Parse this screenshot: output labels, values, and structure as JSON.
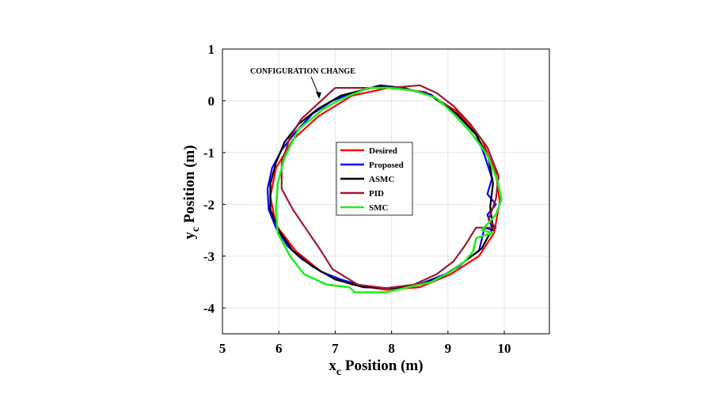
{
  "chart_data": {
    "type": "line",
    "title": "",
    "xlabel": "x",
    "xlabel_sub": "c",
    "xlabel_rest": " Position (m)",
    "ylabel": "y",
    "ylabel_sub": "c",
    "ylabel_rest": " Position (m)",
    "xlim": [
      5,
      10.8
    ],
    "ylim": [
      -4.5,
      1
    ],
    "xticks": [
      "5",
      "6",
      "7",
      "8",
      "9",
      "10"
    ],
    "yticks": [
      "1",
      "0",
      "-1",
      "-2",
      "-3",
      "-4"
    ],
    "grid": true,
    "legend_position": "center",
    "annotation": {
      "text": "CONFIGURATION CHANGE",
      "x": 6.8,
      "y": 0.05
    },
    "series": [
      {
        "name": "Desired",
        "color": "#ff0000",
        "points": [
          [
            7.95,
            0.25
          ],
          [
            8.6,
            0.17
          ],
          [
            9.15,
            -0.2
          ],
          [
            9.6,
            -0.75
          ],
          [
            9.85,
            -1.4
          ],
          [
            9.92,
            -1.95
          ],
          [
            9.82,
            -2.55
          ],
          [
            9.55,
            -3.0
          ],
          [
            9.05,
            -3.35
          ],
          [
            8.5,
            -3.6
          ],
          [
            7.9,
            -3.65
          ],
          [
            7.3,
            -3.55
          ],
          [
            6.75,
            -3.3
          ],
          [
            6.3,
            -2.9
          ],
          [
            5.95,
            -2.4
          ],
          [
            5.85,
            -1.85
          ],
          [
            5.95,
            -1.3
          ],
          [
            6.25,
            -0.75
          ],
          [
            6.7,
            -0.3
          ],
          [
            7.3,
            0.1
          ],
          [
            7.95,
            0.25
          ]
        ]
      },
      {
        "name": "Proposed",
        "color": "#0000ff",
        "points": [
          [
            7.8,
            0.3
          ],
          [
            8.2,
            0.25
          ],
          [
            8.7,
            0.12
          ],
          [
            9.15,
            -0.25
          ],
          [
            9.5,
            -0.65
          ],
          [
            9.65,
            -1.05
          ],
          [
            9.78,
            -1.5
          ],
          [
            9.7,
            -1.8
          ],
          [
            9.85,
            -2.0
          ],
          [
            9.7,
            -2.2
          ],
          [
            9.8,
            -2.5
          ],
          [
            9.65,
            -2.45
          ],
          [
            9.55,
            -2.9
          ],
          [
            9.35,
            -3.05
          ],
          [
            9.2,
            -3.2
          ],
          [
            8.95,
            -3.35
          ],
          [
            8.6,
            -3.5
          ],
          [
            8.3,
            -3.6
          ],
          [
            7.9,
            -3.62
          ],
          [
            7.5,
            -3.58
          ],
          [
            7.1,
            -3.45
          ],
          [
            6.75,
            -3.3
          ],
          [
            6.4,
            -3.05
          ],
          [
            6.15,
            -2.8
          ],
          [
            5.95,
            -2.45
          ],
          [
            5.82,
            -2.1
          ],
          [
            5.8,
            -1.7
          ],
          [
            5.88,
            -1.3
          ],
          [
            6.05,
            -0.95
          ],
          [
            6.3,
            -0.6
          ],
          [
            6.6,
            -0.25
          ],
          [
            6.95,
            0.0
          ],
          [
            7.3,
            0.15
          ],
          [
            7.8,
            0.3
          ]
        ]
      },
      {
        "name": "ASMC",
        "color": "#000000",
        "points": [
          [
            7.75,
            0.28
          ],
          [
            8.2,
            0.25
          ],
          [
            8.7,
            0.1
          ],
          [
            9.15,
            -0.25
          ],
          [
            9.5,
            -0.65
          ],
          [
            9.72,
            -1.1
          ],
          [
            9.8,
            -1.6
          ],
          [
            9.75,
            -2.05
          ],
          [
            9.8,
            -2.45
          ],
          [
            9.6,
            -2.85
          ],
          [
            9.3,
            -3.1
          ],
          [
            8.9,
            -3.4
          ],
          [
            8.5,
            -3.55
          ],
          [
            8.0,
            -3.62
          ],
          [
            7.5,
            -3.6
          ],
          [
            7.0,
            -3.45
          ],
          [
            6.6,
            -3.2
          ],
          [
            6.25,
            -2.9
          ],
          [
            6.0,
            -2.5
          ],
          [
            5.85,
            -2.1
          ],
          [
            5.85,
            -1.6
          ],
          [
            5.95,
            -1.2
          ],
          [
            6.1,
            -0.8
          ],
          [
            6.35,
            -0.45
          ],
          [
            6.7,
            -0.15
          ],
          [
            7.1,
            0.1
          ],
          [
            7.75,
            0.28
          ]
        ]
      },
      {
        "name": "PID",
        "color": "#a0182e",
        "points": [
          [
            7.0,
            0.25
          ],
          [
            7.5,
            0.25
          ],
          [
            8.0,
            0.25
          ],
          [
            8.5,
            0.3
          ],
          [
            8.8,
            0.15
          ],
          [
            9.1,
            -0.1
          ],
          [
            9.4,
            -0.45
          ],
          [
            9.7,
            -0.9
          ],
          [
            9.9,
            -1.45
          ],
          [
            9.85,
            -1.9
          ],
          [
            9.72,
            -2.3
          ],
          [
            9.85,
            -2.45
          ],
          [
            9.5,
            -2.45
          ],
          [
            9.3,
            -2.8
          ],
          [
            9.1,
            -3.1
          ],
          [
            8.8,
            -3.35
          ],
          [
            8.4,
            -3.55
          ],
          [
            7.9,
            -3.62
          ],
          [
            7.4,
            -3.55
          ],
          [
            6.95,
            -3.25
          ],
          [
            6.75,
            -2.9
          ],
          [
            6.5,
            -2.5
          ],
          [
            6.25,
            -2.1
          ],
          [
            6.05,
            -1.7
          ],
          [
            6.05,
            -1.2
          ],
          [
            6.2,
            -0.7
          ],
          [
            6.4,
            -0.35
          ],
          [
            6.7,
            -0.05
          ],
          [
            7.0,
            0.25
          ]
        ]
      },
      {
        "name": "SMC",
        "color": "#22ee22",
        "points": [
          [
            7.95,
            0.25
          ],
          [
            8.4,
            0.2
          ],
          [
            8.8,
            0.05
          ],
          [
            9.1,
            -0.25
          ],
          [
            9.4,
            -0.6
          ],
          [
            9.7,
            -1.05
          ],
          [
            9.88,
            -1.55
          ],
          [
            9.95,
            -1.9
          ],
          [
            9.85,
            -2.2
          ],
          [
            9.6,
            -2.5
          ],
          [
            9.8,
            -2.55
          ],
          [
            9.5,
            -2.65
          ],
          [
            9.45,
            -2.9
          ],
          [
            9.3,
            -3.1
          ],
          [
            9.05,
            -3.3
          ],
          [
            8.7,
            -3.5
          ],
          [
            8.3,
            -3.6
          ],
          [
            7.9,
            -3.7
          ],
          [
            7.35,
            -3.7
          ],
          [
            7.25,
            -3.6
          ],
          [
            6.85,
            -3.55
          ],
          [
            6.45,
            -3.35
          ],
          [
            6.2,
            -3.0
          ],
          [
            5.98,
            -2.55
          ],
          [
            5.95,
            -2.1
          ],
          [
            5.98,
            -1.6
          ],
          [
            6.1,
            -1.1
          ],
          [
            6.35,
            -0.55
          ],
          [
            6.8,
            -0.15
          ],
          [
            7.05,
            0.0
          ],
          [
            7.3,
            0.12
          ],
          [
            7.6,
            0.25
          ],
          [
            7.95,
            0.25
          ]
        ]
      }
    ]
  }
}
